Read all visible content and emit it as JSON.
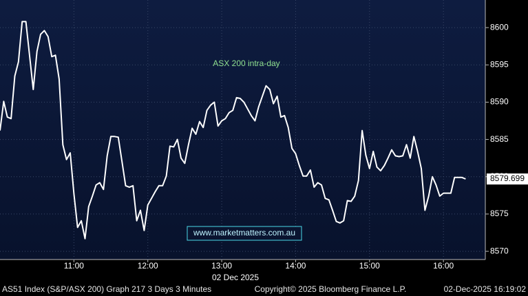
{
  "chart_data": {
    "type": "line",
    "annotation": "ASX 200 intra-day",
    "watermark": "www.marketmatters.com.au",
    "xlabel": "02 Dec 2025",
    "last_value": 8579.699,
    "color": "#ffffff",
    "grid": true,
    "x": [
      "10:00",
      "10:03",
      "10:06",
      "10:09",
      "10:12",
      "10:15",
      "10:18",
      "10:21",
      "10:24",
      "10:27",
      "10:30",
      "10:33",
      "10:36",
      "10:39",
      "10:42",
      "10:45",
      "10:48",
      "10:51",
      "10:54",
      "10:57",
      "11:00",
      "11:03",
      "11:06",
      "11:09",
      "11:12",
      "11:15",
      "11:18",
      "11:21",
      "11:24",
      "11:27",
      "11:30",
      "11:33",
      "11:36",
      "11:39",
      "11:42",
      "11:45",
      "11:48",
      "11:51",
      "11:54",
      "11:57",
      "12:00",
      "12:03",
      "12:06",
      "12:09",
      "12:12",
      "12:15",
      "12:18",
      "12:21",
      "12:24",
      "12:27",
      "12:30",
      "12:33",
      "12:36",
      "12:39",
      "12:42",
      "12:45",
      "12:48",
      "12:51",
      "12:54",
      "12:57",
      "13:00",
      "13:03",
      "13:06",
      "13:09",
      "13:12",
      "13:15",
      "13:18",
      "13:21",
      "13:24",
      "13:27",
      "13:30",
      "13:33",
      "13:36",
      "13:39",
      "13:42",
      "13:45",
      "13:48",
      "13:51",
      "13:54",
      "13:57",
      "14:00",
      "14:03",
      "14:06",
      "14:09",
      "14:12",
      "14:15",
      "14:18",
      "14:21",
      "14:24",
      "14:27",
      "14:30",
      "14:33",
      "14:36",
      "14:39",
      "14:42",
      "14:45",
      "14:48",
      "14:51",
      "14:54",
      "14:57",
      "15:00",
      "15:03",
      "15:06",
      "15:09",
      "15:12",
      "15:15",
      "15:18",
      "15:21",
      "15:24",
      "15:27",
      "15:30",
      "15:33",
      "15:36",
      "15:39",
      "15:42",
      "15:45",
      "15:48",
      "15:51",
      "15:54",
      "15:57",
      "16:00",
      "16:03",
      "16:06",
      "16:09",
      "16:12",
      "16:15",
      "16:18"
    ],
    "values": [
      8586.2,
      8590.1,
      8588.0,
      8587.8,
      8593.5,
      8595.4,
      8600.8,
      8600.8,
      8596.3,
      8591.7,
      8596.8,
      8599.1,
      8599.6,
      8598.8,
      8596.1,
      8596.3,
      8593.1,
      8584.3,
      8582.3,
      8583.2,
      8577.7,
      8573.2,
      8574.1,
      8571.7,
      8576.0,
      8577.4,
      8578.9,
      8579.2,
      8578.3,
      8582.8,
      8585.4,
      8585.4,
      8585.3,
      8582.1,
      8578.8,
      8578.6,
      8578.8,
      8574.1,
      8575.5,
      8572.8,
      8576.2,
      8577.1,
      8578.0,
      8578.8,
      8578.8,
      8580.1,
      8584.1,
      8584.0,
      8585.0,
      8582.5,
      8581.8,
      8584.3,
      8586.5,
      8585.7,
      8587.4,
      8586.6,
      8588.9,
      8589.6,
      8590.0,
      8586.8,
      8587.5,
      8587.8,
      8588.6,
      8588.9,
      8590.6,
      8590.5,
      8590.0,
      8589.1,
      8588.2,
      8587.5,
      8589.4,
      8590.8,
      8592.2,
      8591.7,
      8589.8,
      8590.8,
      8588.0,
      8588.2,
      8586.6,
      8583.8,
      8583.1,
      8581.5,
      8580.1,
      8580.1,
      8580.9,
      8578.6,
      8579.2,
      8578.9,
      8577.1,
      8576.9,
      8575.5,
      8574.0,
      8573.8,
      8574.1,
      8576.8,
      8576.7,
      8577.4,
      8579.5,
      8586.2,
      8582.9,
      8581.1,
      8583.4,
      8581.3,
      8580.8,
      8581.5,
      8582.5,
      8583.6,
      8582.8,
      8582.7,
      8582.8,
      8584.3,
      8582.5,
      8585.4,
      8583.4,
      8581.1,
      8575.5,
      8577.4,
      8580.0,
      8578.9,
      8577.4,
      8577.8,
      8577.8,
      8577.8,
      8579.9,
      8579.9,
      8579.9,
      8579.7
    ],
    "xlim": [
      "10:00",
      "16:34"
    ],
    "xticks": [
      "11:00",
      "12:00",
      "13:00",
      "14:00",
      "15:00",
      "16:00"
    ],
    "ylim": [
      8568.9,
      8603.7
    ],
    "yticks": [
      8570,
      8575,
      8580,
      8585,
      8590,
      8595,
      8600
    ]
  },
  "footer": [
    "AS51 Index (S&P/ASX 200) Graph 217 3 Days 3 Minutes",
    "Copyright© 2025 Bloomberg Finance L.P.",
    "02-Dec-2025 16:19:02"
  ]
}
